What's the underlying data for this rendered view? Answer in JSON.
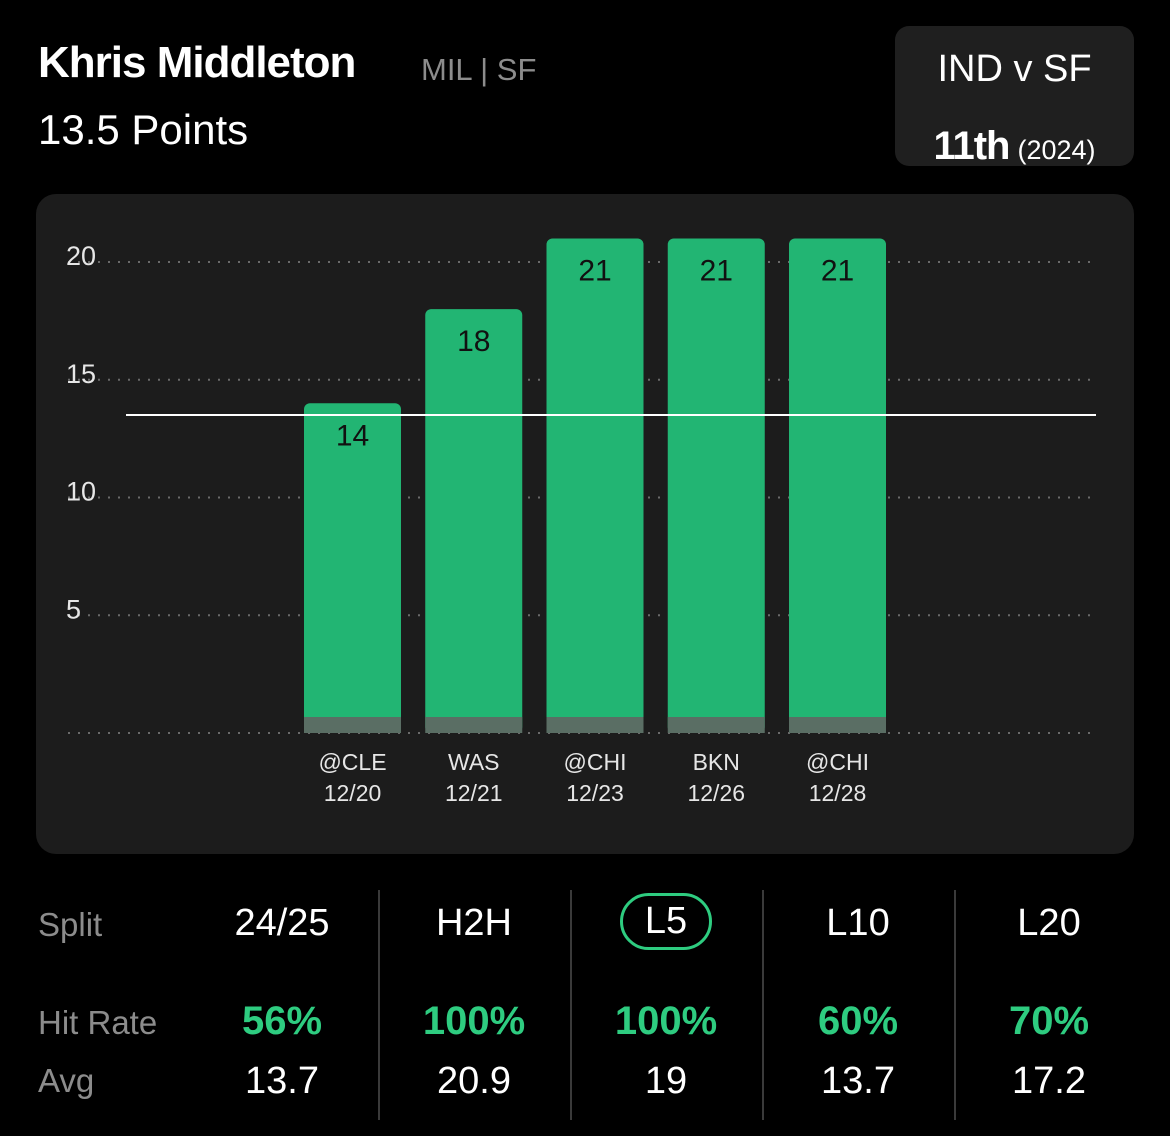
{
  "header": {
    "player_name": "Khris Middleton",
    "team_position": "MIL | SF",
    "prop_line": "13.5 Points"
  },
  "matchup": {
    "title": "IND v SF",
    "rank": "11th",
    "season": "(2024)"
  },
  "chart_data": {
    "type": "bar",
    "categories": [
      "@CLE 12/20",
      "WAS 12/21",
      "@CHI 12/23",
      "BKN 12/26",
      "@CHI 12/28"
    ],
    "opponents": [
      "@CLE",
      "WAS",
      "@CHI",
      "BKN",
      "@CHI"
    ],
    "dates": [
      "12/20",
      "12/21",
      "12/23",
      "12/26",
      "12/28"
    ],
    "values": [
      14,
      18,
      21,
      21,
      21
    ],
    "reference_line": 13.5,
    "yticks": [
      5,
      10,
      15,
      20
    ],
    "ylim": [
      0,
      21
    ],
    "grid": true,
    "colors": {
      "bar": "#22b573",
      "bar_base": "#5a6e64",
      "panel": "#1c1c1c",
      "line": "#ffffff"
    }
  },
  "splits": {
    "row_labels": {
      "split": "Split",
      "hit_rate": "Hit Rate",
      "avg": "Avg"
    },
    "columns": [
      {
        "label": "24/25",
        "hit_rate": "56%",
        "avg": "13.7"
      },
      {
        "label": "H2H",
        "hit_rate": "100%",
        "avg": "20.9"
      },
      {
        "label": "L5",
        "hit_rate": "100%",
        "avg": "19"
      },
      {
        "label": "L10",
        "hit_rate": "60%",
        "avg": "13.7"
      },
      {
        "label": "L20",
        "hit_rate": "70%",
        "avg": "17.2"
      }
    ],
    "active": "L5",
    "accent": "#2ecc80"
  }
}
